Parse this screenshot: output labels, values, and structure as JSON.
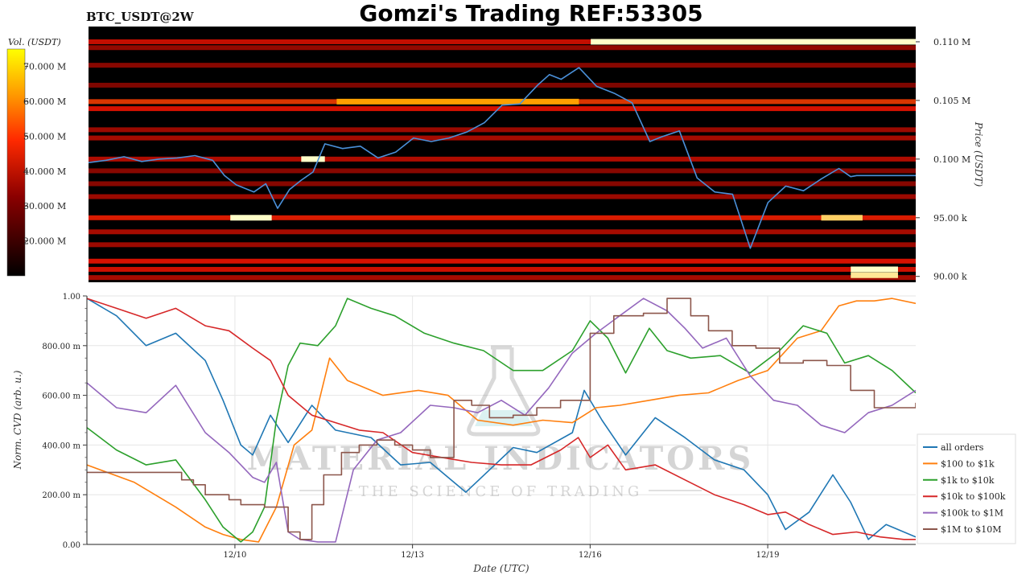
{
  "header": {
    "symbol": "BTC_USDT@2W",
    "title": "Gomzi's Trading REF:53305"
  },
  "watermark": {
    "brand": "MATERIAL INDICATORS",
    "tagline": "THE SCIENCE OF TRADING"
  },
  "colors": {
    "heatmap_background": "#000000",
    "price_line": "#4a90d9",
    "colorbar_high": "#ffff00",
    "colorbar_mid": "#ff2a00",
    "colorbar_low": "#000000"
  },
  "chart_data": [
    {
      "type": "heatmap",
      "name": "orderbook-liquidity-heatmap",
      "ylabel": "Price (USDT)",
      "yticks": [
        "0.110 M",
        "0.105 M",
        "0.100 M",
        "95.00 k",
        "90.00 k"
      ],
      "yticks_values": [
        110000,
        105000,
        100000,
        95000,
        90000
      ],
      "ylim": [
        89500,
        111300
      ],
      "x_dates": [
        "12/10",
        "12/13",
        "12/16",
        "12/19"
      ],
      "colorbar": {
        "label": "Vol. (USDT)",
        "ticks": [
          "70.000 M",
          "60.000 M",
          "50.000 M",
          "40.000 M",
          "30.000 M",
          "20.000 M"
        ],
        "ticks_values": [
          70,
          60,
          50,
          40,
          30,
          20
        ],
        "range": [
          10,
          75
        ]
      },
      "price_series": {
        "x_days": [
          0,
          0.3,
          0.6,
          0.9,
          1.2,
          1.5,
          1.8,
          2.1,
          2.3,
          2.5,
          2.8,
          3.0,
          3.2,
          3.4,
          3.6,
          3.8,
          4.0,
          4.3,
          4.6,
          4.9,
          5.2,
          5.5,
          5.8,
          6.1,
          6.4,
          6.7,
          7.0,
          7.3,
          7.6,
          7.8,
          8.0,
          8.3,
          8.6,
          8.9,
          9.2,
          9.5,
          9.7,
          10.0,
          10.3,
          10.6,
          10.9,
          11.2,
          11.5,
          11.8,
          12.1,
          12.4,
          12.7,
          12.9,
          13.0,
          13.2,
          13.5,
          13.8,
          14.0
        ],
        "price": [
          99700,
          99900,
          100200,
          99800,
          100000,
          100100,
          100300,
          99900,
          98600,
          97800,
          97200,
          97900,
          95800,
          97400,
          98200,
          98900,
          101300,
          100900,
          101100,
          100100,
          100600,
          101800,
          101500,
          101800,
          102300,
          103100,
          104600,
          104700,
          106300,
          107200,
          106800,
          107800,
          106200,
          105600,
          104800,
          101500,
          101900,
          102400,
          98400,
          97200,
          97000,
          92400,
          96300,
          97700,
          97300,
          98300,
          99200,
          98500,
          98600,
          98600,
          98600,
          98600,
          98600
        ]
      },
      "levels": [
        {
          "price": 110000,
          "intensity": 0.6
        },
        {
          "price": 109500,
          "intensity": 0.35
        },
        {
          "price": 108000,
          "intensity": 0.3
        },
        {
          "price": 106300,
          "intensity": 0.25
        },
        {
          "price": 104900,
          "intensity": 0.85
        },
        {
          "price": 104300,
          "intensity": 0.7
        },
        {
          "price": 102500,
          "intensity": 0.4
        },
        {
          "price": 101800,
          "intensity": 0.45
        },
        {
          "price": 100000,
          "intensity": 0.5
        },
        {
          "price": 99000,
          "intensity": 0.3
        },
        {
          "price": 97900,
          "intensity": 0.3
        },
        {
          "price": 96800,
          "intensity": 0.4
        },
        {
          "price": 95000,
          "intensity": 0.75
        },
        {
          "price": 93800,
          "intensity": 0.45
        },
        {
          "price": 92700,
          "intensity": 0.4
        },
        {
          "price": 91300,
          "intensity": 0.7
        },
        {
          "price": 90600,
          "intensity": 0.65
        },
        {
          "price": 89900,
          "intensity": 0.45
        }
      ],
      "hot_spots": [
        {
          "x_day_start": 8.5,
          "x_day_end": 14.0,
          "price": 110000,
          "value": 1.0
        },
        {
          "x_day_start": 4.2,
          "x_day_end": 8.3,
          "price": 104900,
          "value": 0.8
        },
        {
          "x_day_start": 2.4,
          "x_day_end": 3.1,
          "price": 95000,
          "value": 1.0
        },
        {
          "x_day_start": 3.6,
          "x_day_end": 4.0,
          "price": 100000,
          "value": 1.0
        },
        {
          "x_day_start": 12.9,
          "x_day_end": 13.7,
          "price": 90600,
          "value": 1.0
        },
        {
          "x_day_start": 12.9,
          "x_day_end": 13.7,
          "price": 90100,
          "value": 0.95
        },
        {
          "x_day_start": 12.4,
          "x_day_end": 13.1,
          "price": 95000,
          "value": 0.9
        }
      ]
    },
    {
      "type": "line",
      "name": "normalized-cvd",
      "xlabel": "Date (UTC)",
      "ylabel": "Norm. CVD (arb. u.)",
      "ylim": [
        0,
        1
      ],
      "yticks": [
        "0.00",
        "200.00 m",
        "400.00 m",
        "600.00 m",
        "800.00 m",
        "1.00"
      ],
      "yticks_values": [
        0,
        0.2,
        0.4,
        0.6,
        0.8,
        1.0
      ],
      "xticks": [
        "12/10",
        "12/13",
        "12/16",
        "12/19"
      ],
      "xticks_days": [
        2.5,
        5.5,
        8.5,
        11.5
      ],
      "xlim_days": [
        0,
        14
      ],
      "series": [
        {
          "name": "all orders",
          "color": "#1f77b4",
          "step": false,
          "x": [
            0,
            0.5,
            1.0,
            1.5,
            2.0,
            2.3,
            2.6,
            2.8,
            3.1,
            3.4,
            3.8,
            4.2,
            4.8,
            5.3,
            5.8,
            6.4,
            6.8,
            7.2,
            7.6,
            8.2,
            8.4,
            8.7,
            9.1,
            9.6,
            10.1,
            10.6,
            11.1,
            11.5,
            11.8,
            12.2,
            12.6,
            12.9,
            13.2,
            13.5,
            14.0
          ],
          "y": [
            0.99,
            0.92,
            0.8,
            0.85,
            0.74,
            0.58,
            0.4,
            0.36,
            0.52,
            0.41,
            0.56,
            0.46,
            0.43,
            0.32,
            0.33,
            0.21,
            0.3,
            0.39,
            0.37,
            0.45,
            0.62,
            0.5,
            0.36,
            0.51,
            0.43,
            0.34,
            0.3,
            0.2,
            0.06,
            0.13,
            0.28,
            0.17,
            0.02,
            0.08,
            0.03
          ]
        },
        {
          "name": "$100 to $1k",
          "color": "#ff7f0e",
          "step": false,
          "x": [
            0,
            0.8,
            1.5,
            2.0,
            2.3,
            2.6,
            2.9,
            3.2,
            3.5,
            3.8,
            4.1,
            4.4,
            5.0,
            5.6,
            6.1,
            6.6,
            7.2,
            7.7,
            8.2,
            8.6,
            9.0,
            9.5,
            10.0,
            10.5,
            11.0,
            11.5,
            12.0,
            12.4,
            12.7,
            13.0,
            13.3,
            13.6,
            14.0
          ],
          "y": [
            0.32,
            0.25,
            0.15,
            0.07,
            0.04,
            0.02,
            0.01,
            0.15,
            0.4,
            0.46,
            0.75,
            0.66,
            0.6,
            0.62,
            0.6,
            0.5,
            0.48,
            0.5,
            0.49,
            0.55,
            0.56,
            0.58,
            0.6,
            0.61,
            0.66,
            0.7,
            0.83,
            0.86,
            0.96,
            0.98,
            0.98,
            0.99,
            0.97
          ]
        },
        {
          "name": "$1k to $10k",
          "color": "#2ca02c",
          "step": false,
          "x": [
            0,
            0.5,
            1.0,
            1.5,
            2.0,
            2.3,
            2.6,
            2.8,
            3.0,
            3.2,
            3.4,
            3.6,
            3.9,
            4.2,
            4.4,
            4.8,
            5.2,
            5.7,
            6.2,
            6.7,
            7.2,
            7.7,
            8.2,
            8.5,
            8.8,
            9.1,
            9.5,
            9.8,
            10.2,
            10.7,
            11.2,
            11.7,
            12.1,
            12.5,
            12.8,
            13.2,
            13.6,
            14.0
          ],
          "y": [
            0.47,
            0.38,
            0.32,
            0.34,
            0.18,
            0.07,
            0.01,
            0.05,
            0.15,
            0.5,
            0.72,
            0.81,
            0.8,
            0.88,
            0.99,
            0.95,
            0.92,
            0.85,
            0.81,
            0.78,
            0.7,
            0.7,
            0.78,
            0.9,
            0.83,
            0.69,
            0.87,
            0.78,
            0.75,
            0.76,
            0.69,
            0.78,
            0.88,
            0.85,
            0.73,
            0.76,
            0.7,
            0.61
          ]
        },
        {
          "name": "$10k to $100k",
          "color": "#d62728",
          "step": false,
          "x": [
            0,
            0.5,
            1.0,
            1.5,
            2.0,
            2.4,
            2.8,
            3.1,
            3.4,
            3.8,
            4.2,
            4.6,
            5.0,
            5.5,
            6.0,
            6.5,
            7.0,
            7.5,
            8.0,
            8.3,
            8.5,
            8.8,
            9.1,
            9.6,
            10.1,
            10.6,
            11.1,
            11.5,
            11.8,
            12.2,
            12.6,
            13.0,
            13.4,
            13.8,
            14.0
          ],
          "y": [
            0.99,
            0.95,
            0.91,
            0.95,
            0.88,
            0.86,
            0.79,
            0.74,
            0.6,
            0.52,
            0.49,
            0.46,
            0.45,
            0.37,
            0.35,
            0.33,
            0.32,
            0.32,
            0.38,
            0.43,
            0.35,
            0.4,
            0.3,
            0.32,
            0.26,
            0.2,
            0.16,
            0.12,
            0.13,
            0.08,
            0.04,
            0.05,
            0.03,
            0.02,
            0.02
          ]
        },
        {
          "name": "$100k to $1M",
          "color": "#9467bd",
          "step": false,
          "x": [
            0,
            0.5,
            1.0,
            1.5,
            2.0,
            2.4,
            2.8,
            3.0,
            3.2,
            3.4,
            3.6,
            3.9,
            4.2,
            4.5,
            4.9,
            5.3,
            5.8,
            6.2,
            6.6,
            7.0,
            7.4,
            7.8,
            8.2,
            8.6,
            9.0,
            9.4,
            9.8,
            10.1,
            10.4,
            10.8,
            11.2,
            11.6,
            12.0,
            12.4,
            12.8,
            13.2,
            13.6,
            14.0
          ],
          "y": [
            0.65,
            0.55,
            0.53,
            0.64,
            0.45,
            0.37,
            0.27,
            0.25,
            0.33,
            0.05,
            0.02,
            0.01,
            0.01,
            0.3,
            0.42,
            0.45,
            0.56,
            0.55,
            0.53,
            0.58,
            0.52,
            0.63,
            0.77,
            0.85,
            0.92,
            0.99,
            0.94,
            0.87,
            0.79,
            0.83,
            0.68,
            0.58,
            0.56,
            0.48,
            0.45,
            0.53,
            0.56,
            0.62
          ]
        },
        {
          "name": "$1M to $10M",
          "color": "#8c564b",
          "step": true,
          "x": [
            0,
            1.6,
            1.8,
            2.0,
            2.2,
            2.4,
            2.6,
            3.0,
            3.4,
            3.6,
            3.8,
            4.0,
            4.3,
            4.6,
            4.9,
            5.2,
            5.5,
            5.8,
            6.2,
            6.5,
            6.8,
            7.2,
            7.6,
            8.0,
            8.5,
            8.9,
            9.4,
            9.8,
            10.2,
            10.5,
            10.9,
            11.3,
            11.7,
            12.1,
            12.5,
            12.9,
            13.3,
            14.0
          ],
          "y": [
            0.29,
            0.26,
            0.24,
            0.2,
            0.2,
            0.18,
            0.16,
            0.15,
            0.05,
            0.02,
            0.16,
            0.28,
            0.37,
            0.4,
            0.42,
            0.4,
            0.38,
            0.35,
            0.58,
            0.56,
            0.51,
            0.52,
            0.55,
            0.58,
            0.85,
            0.92,
            0.93,
            0.99,
            0.92,
            0.86,
            0.8,
            0.79,
            0.73,
            0.74,
            0.72,
            0.62,
            0.55,
            0.57
          ]
        }
      ],
      "legend": {
        "placement": "lower-right"
      }
    }
  ]
}
